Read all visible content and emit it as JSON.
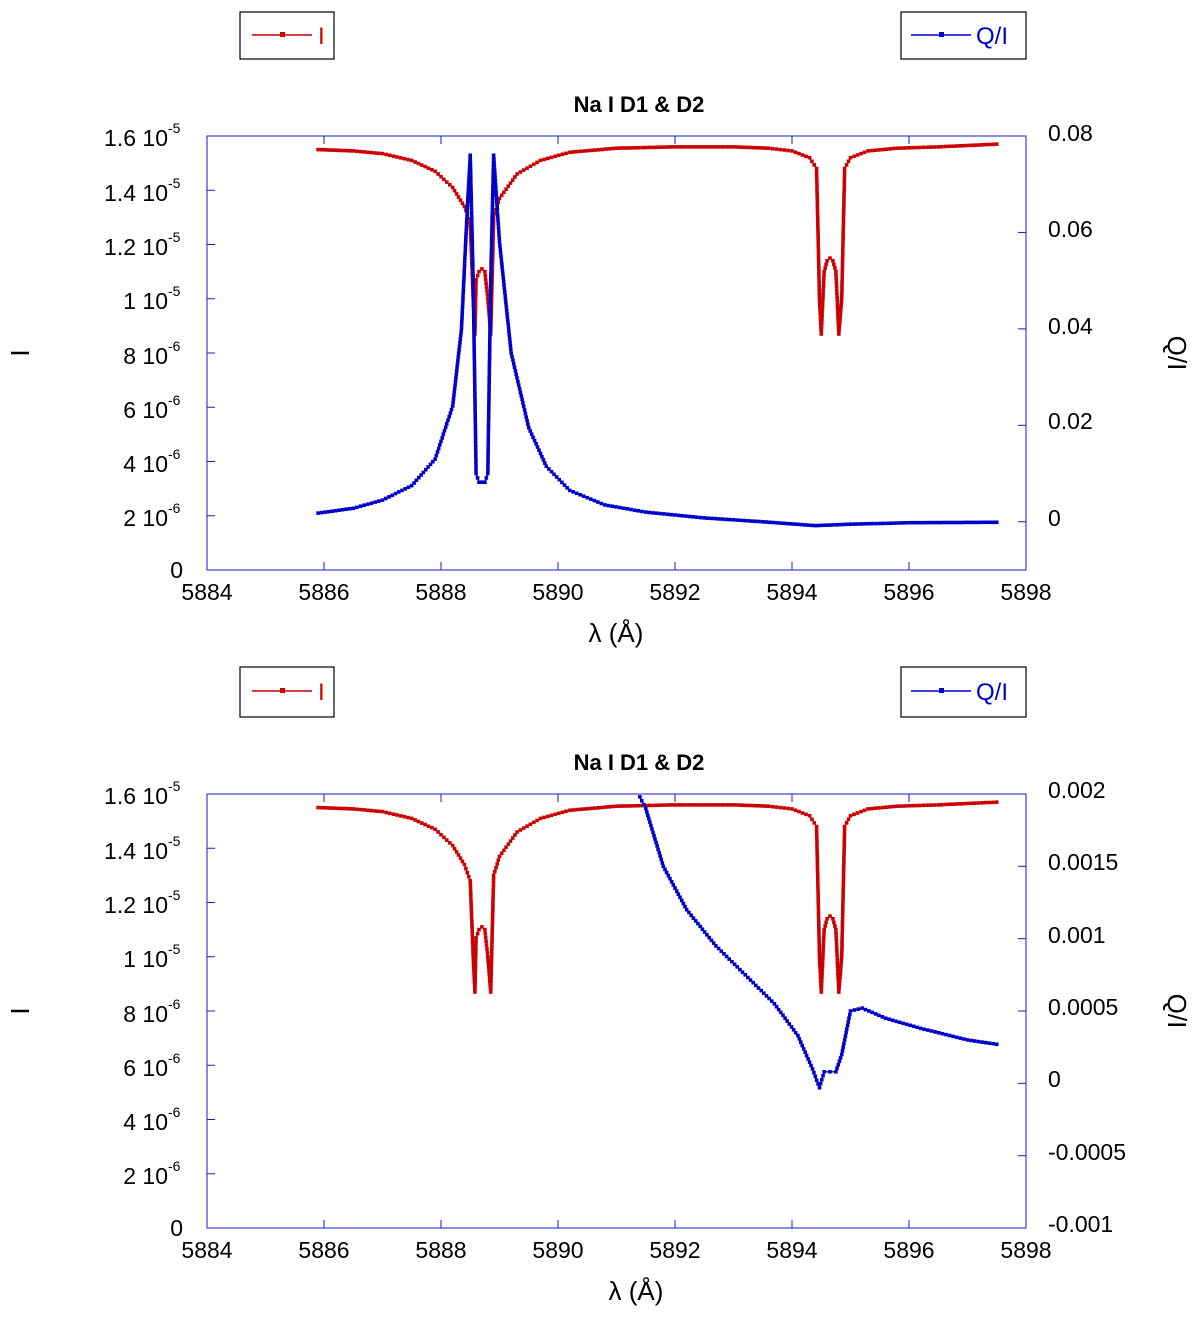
{
  "chart_data": [
    {
      "type": "line",
      "title": "Na I D1 & D2",
      "xlabel": "λ (Å)",
      "ylabel_left": "I",
      "ylabel_right": "Q/I",
      "xlim": [
        5884,
        5898
      ],
      "x_ticks": [
        "5884",
        "5886",
        "5888",
        "5890",
        "5892",
        "5894",
        "5896",
        "5898"
      ],
      "y_left_lim": [
        0,
        1.6e-05
      ],
      "y_left_ticks": [
        {
          "value": 0,
          "mantissa": "0",
          "exp": ""
        },
        {
          "value": 2e-06,
          "mantissa": "2 10",
          "exp": "-6"
        },
        {
          "value": 4e-06,
          "mantissa": "4 10",
          "exp": "-6"
        },
        {
          "value": 6e-06,
          "mantissa": "6 10",
          "exp": "-6"
        },
        {
          "value": 8e-06,
          "mantissa": "8 10",
          "exp": "-6"
        },
        {
          "value": 1e-05,
          "mantissa": "1 10",
          "exp": "-5"
        },
        {
          "value": 1.2e-05,
          "mantissa": "1.2 10",
          "exp": "-5"
        },
        {
          "value": 1.4e-05,
          "mantissa": "1.4 10",
          "exp": "-5"
        },
        {
          "value": 1.6e-05,
          "mantissa": "1.6 10",
          "exp": "-5"
        }
      ],
      "y_right_lim": [
        -0.01,
        0.08
      ],
      "y_right_ticks": [
        "0",
        "0.02",
        "0.04",
        "0.06",
        "0.08"
      ],
      "legend": [
        {
          "label": "I",
          "color": "#cc0000"
        },
        {
          "label": "Q/I",
          "color": "#0000cc"
        }
      ],
      "series": [
        {
          "name": "I",
          "axis": "left",
          "color": "#cc0000",
          "x": [
            5885.9,
            5886.5,
            5887.0,
            5887.5,
            5887.9,
            5888.2,
            5888.4,
            5888.5,
            5888.55,
            5888.58,
            5888.6,
            5888.65,
            5888.7,
            5888.75,
            5888.8,
            5888.85,
            5888.9,
            5889.0,
            5889.3,
            5889.7,
            5890.2,
            5891.0,
            5892.0,
            5893.0,
            5893.6,
            5894.0,
            5894.3,
            5894.42,
            5894.47,
            5894.5,
            5894.55,
            5894.6,
            5894.65,
            5894.7,
            5894.75,
            5894.8,
            5894.85,
            5894.9,
            5895.0,
            5895.3,
            5895.8,
            5896.5,
            5897.5
          ],
          "y": [
            1.55e-05,
            1.545e-05,
            1.535e-05,
            1.51e-05,
            1.47e-05,
            1.41e-05,
            1.34e-05,
            1.28e-05,
            1e-05,
            8.7e-06,
            1.07e-05,
            1.1e-05,
            1.11e-05,
            1.1e-05,
            1e-05,
            8.7e-06,
            1.3e-05,
            1.37e-05,
            1.46e-05,
            1.51e-05,
            1.54e-05,
            1.555e-05,
            1.56e-05,
            1.56e-05,
            1.555e-05,
            1.545e-05,
            1.52e-05,
            1.48e-05,
            1e-05,
            8.7e-06,
            1.1e-05,
            1.14e-05,
            1.15e-05,
            1.14e-05,
            1.1e-05,
            8.7e-06,
            1e-05,
            1.48e-05,
            1.52e-05,
            1.545e-05,
            1.555e-05,
            1.56e-05,
            1.57e-05
          ]
        },
        {
          "name": "Q/I",
          "axis": "right",
          "color": "#0000cc",
          "x": [
            5885.9,
            5886.5,
            5887.0,
            5887.5,
            5887.9,
            5888.2,
            5888.35,
            5888.45,
            5888.5,
            5888.55,
            5888.6,
            5888.65,
            5888.7,
            5888.75,
            5888.8,
            5888.85,
            5888.9,
            5889.0,
            5889.2,
            5889.5,
            5889.8,
            5890.2,
            5890.8,
            5891.5,
            5892.5,
            5893.5,
            5894.4,
            5895.0,
            5896.0,
            5897.5
          ],
          "y": [
            0.0018,
            0.0028,
            0.0045,
            0.0075,
            0.013,
            0.024,
            0.04,
            0.065,
            0.076,
            0.05,
            0.01,
            0.0082,
            0.0082,
            0.0082,
            0.01,
            0.05,
            0.076,
            0.058,
            0.035,
            0.0195,
            0.0115,
            0.0065,
            0.0035,
            0.002,
            0.0008,
            0.0,
            -0.0008,
            -0.0005,
            -0.0002,
            -0.0001
          ]
        }
      ]
    },
    {
      "type": "line",
      "title": "Na I D1 & D2",
      "xlabel": "λ (Å)",
      "ylabel_left": "I",
      "ylabel_right": "Q/I",
      "xlim": [
        5884,
        5898
      ],
      "x_ticks": [
        "5884",
        "5886",
        "5888",
        "5890",
        "5892",
        "5894",
        "5896",
        "5898"
      ],
      "y_left_lim": [
        0,
        1.6e-05
      ],
      "y_left_ticks": [
        {
          "value": 0,
          "mantissa": "0",
          "exp": ""
        },
        {
          "value": 2e-06,
          "mantissa": "2 10",
          "exp": "-6"
        },
        {
          "value": 4e-06,
          "mantissa": "4 10",
          "exp": "-6"
        },
        {
          "value": 6e-06,
          "mantissa": "6 10",
          "exp": "-6"
        },
        {
          "value": 8e-06,
          "mantissa": "8 10",
          "exp": "-6"
        },
        {
          "value": 1e-05,
          "mantissa": "1 10",
          "exp": "-5"
        },
        {
          "value": 1.2e-05,
          "mantissa": "1.2 10",
          "exp": "-5"
        },
        {
          "value": 1.4e-05,
          "mantissa": "1.4 10",
          "exp": "-5"
        },
        {
          "value": 1.6e-05,
          "mantissa": "1.6 10",
          "exp": "-5"
        }
      ],
      "y_right_lim": [
        -0.001,
        0.002
      ],
      "y_right_ticks": [
        "-0.001",
        "-0.0005",
        "0",
        "0.0005",
        "0.001",
        "0.0015",
        "0.002"
      ],
      "legend": [
        {
          "label": "I",
          "color": "#cc0000"
        },
        {
          "label": "Q/I",
          "color": "#0000cc"
        }
      ],
      "series": [
        {
          "name": "I",
          "axis": "left",
          "color": "#cc0000",
          "x": [
            5885.9,
            5886.5,
            5887.0,
            5887.5,
            5887.9,
            5888.2,
            5888.4,
            5888.5,
            5888.55,
            5888.58,
            5888.6,
            5888.65,
            5888.7,
            5888.75,
            5888.8,
            5888.85,
            5888.9,
            5889.0,
            5889.3,
            5889.7,
            5890.2,
            5891.0,
            5892.0,
            5893.0,
            5893.6,
            5894.0,
            5894.3,
            5894.42,
            5894.47,
            5894.5,
            5894.55,
            5894.6,
            5894.65,
            5894.7,
            5894.75,
            5894.8,
            5894.85,
            5894.9,
            5895.0,
            5895.3,
            5895.8,
            5896.5,
            5897.5
          ],
          "y": [
            1.55e-05,
            1.545e-05,
            1.535e-05,
            1.51e-05,
            1.47e-05,
            1.41e-05,
            1.34e-05,
            1.28e-05,
            1e-05,
            8.7e-06,
            1.07e-05,
            1.1e-05,
            1.11e-05,
            1.1e-05,
            1e-05,
            8.7e-06,
            1.3e-05,
            1.37e-05,
            1.46e-05,
            1.51e-05,
            1.54e-05,
            1.555e-05,
            1.56e-05,
            1.56e-05,
            1.555e-05,
            1.545e-05,
            1.52e-05,
            1.48e-05,
            1e-05,
            8.7e-06,
            1.1e-05,
            1.14e-05,
            1.15e-05,
            1.14e-05,
            1.1e-05,
            8.7e-06,
            1e-05,
            1.48e-05,
            1.52e-05,
            1.545e-05,
            1.555e-05,
            1.56e-05,
            1.57e-05
          ]
        },
        {
          "name": "Q/I",
          "axis": "right",
          "color": "#0000cc",
          "x": [
            5891.4,
            5891.5,
            5891.8,
            5892.2,
            5892.7,
            5893.2,
            5893.7,
            5894.1,
            5894.35,
            5894.47,
            5894.55,
            5894.65,
            5894.75,
            5894.85,
            5895.0,
            5895.2,
            5895.6,
            5896.2,
            5897.0,
            5897.5
          ],
          "y": [
            0.00198,
            0.0019,
            0.0015,
            0.0012,
            0.00095,
            0.00075,
            0.00055,
            0.00033,
            0.0001,
            -3e-05,
            8e-05,
            8e-05,
            8e-05,
            0.0002,
            0.0005,
            0.00052,
            0.00045,
            0.00038,
            0.0003,
            0.00027
          ]
        }
      ]
    }
  ]
}
